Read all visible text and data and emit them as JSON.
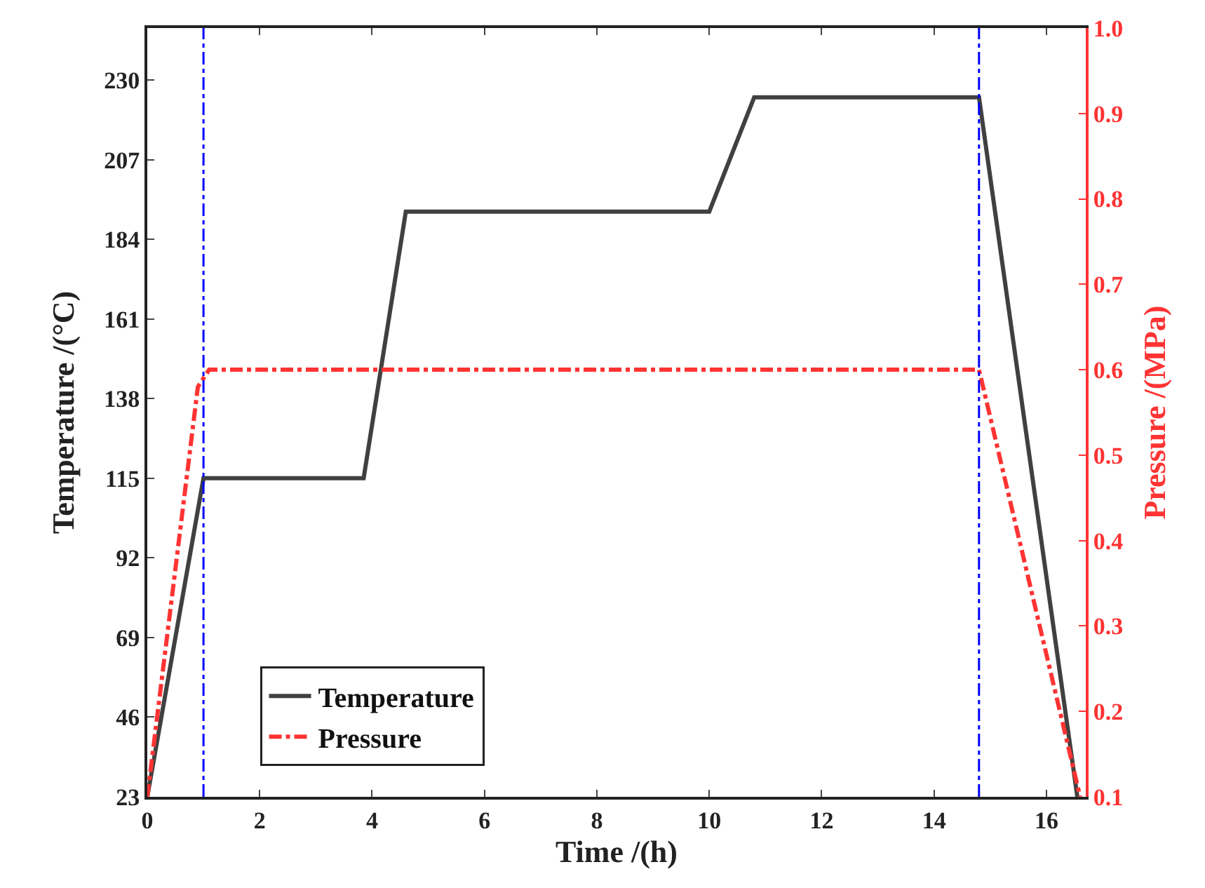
{
  "chart_data": {
    "type": "line",
    "xlabel": "Time /(h)",
    "ylabel": "Temperature /(°C)",
    "y2label": "Pressure /(MPa)",
    "xlim": [
      0,
      16.7
    ],
    "xticks": [
      0,
      2,
      4,
      6,
      8,
      10,
      12,
      14,
      16
    ],
    "ylim": [
      23,
      245
    ],
    "yticks": [
      23,
      46,
      69,
      92,
      115,
      138,
      161,
      184,
      207,
      230
    ],
    "y2lim": [
      0.1,
      1.0
    ],
    "y2ticks": [
      0.1,
      0.2,
      0.3,
      0.4,
      0.5,
      0.6,
      0.7,
      0.8,
      0.9,
      {
        "value": 1.0,
        "label": "1.0"
      }
    ],
    "series": [
      {
        "name": "Temperature",
        "color": "#404040",
        "line_style": "solid",
        "x": [
          0,
          1,
          3.85,
          4.6,
          10,
          10.8,
          14.8,
          16.55
        ],
        "values": [
          23,
          115,
          115,
          192,
          192,
          225,
          225,
          23
        ]
      },
      {
        "name": "Pressure",
        "color": "#ff3333",
        "line_style": "dashdot",
        "axis": "y2",
        "x": [
          0,
          0.9,
          1.1,
          14.8,
          16.6
        ],
        "values": [
          0.1,
          0.58,
          0.6,
          0.6,
          0.1
        ]
      }
    ],
    "ref_lines": [
      {
        "axis": "x",
        "value": 1,
        "color": "#0000ff",
        "line_style": "dashdot"
      },
      {
        "axis": "x",
        "value": 14.8,
        "color": "#0000ff",
        "line_style": "dashdot"
      }
    ],
    "legend": "bottom left"
  }
}
